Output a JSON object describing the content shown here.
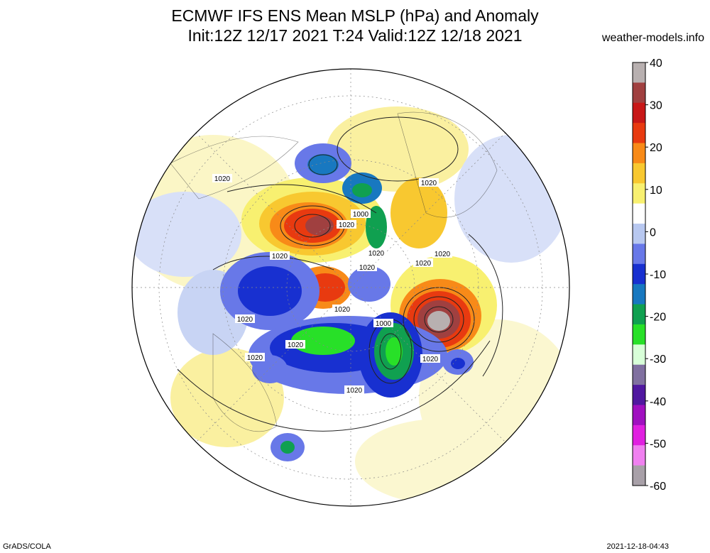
{
  "header": {
    "title_line1": "ECMWF IFS ENS Mean MSLP (hPa) and Anomaly",
    "title_line2": "Init:12Z 12/17 2021  T:24 Valid:12Z 12/18 2021",
    "credit": "weather-models.info"
  },
  "footer": {
    "left": "GrADS/COLA",
    "right": "2021-12-18-04:43"
  },
  "colorbar": {
    "ticks": [
      "40",
      "30",
      "20",
      "10",
      "0",
      "-10",
      "-20",
      "-30",
      "-40",
      "-50",
      "-60"
    ],
    "colors": [
      "#b8b0b0",
      "#a04040",
      "#c81818",
      "#e83a10",
      "#f88a18",
      "#f8c830",
      "#f8f070",
      "#ffffff",
      "#b8c8f0",
      "#6878e8",
      "#1830d0",
      "#1878c0",
      "#10a050",
      "#28e028",
      "#d8ffd8",
      "#8070a0",
      "#5018a0",
      "#a010c0",
      "#e020e0",
      "#f080f0",
      "#a8a0a8"
    ]
  },
  "map": {
    "contour_labels": [
      {
        "text": "1020"
      },
      {
        "text": "1020"
      },
      {
        "text": "1000"
      },
      {
        "text": "1020"
      },
      {
        "text": "1020"
      },
      {
        "text": "1020"
      },
      {
        "text": "1020"
      },
      {
        "text": "1020"
      },
      {
        "text": "1020"
      },
      {
        "text": "1020"
      },
      {
        "text": "1000"
      },
      {
        "text": "1020"
      },
      {
        "text": "1020"
      },
      {
        "text": "1020"
      },
      {
        "text": "1020"
      },
      {
        "text": "1020"
      }
    ]
  }
}
